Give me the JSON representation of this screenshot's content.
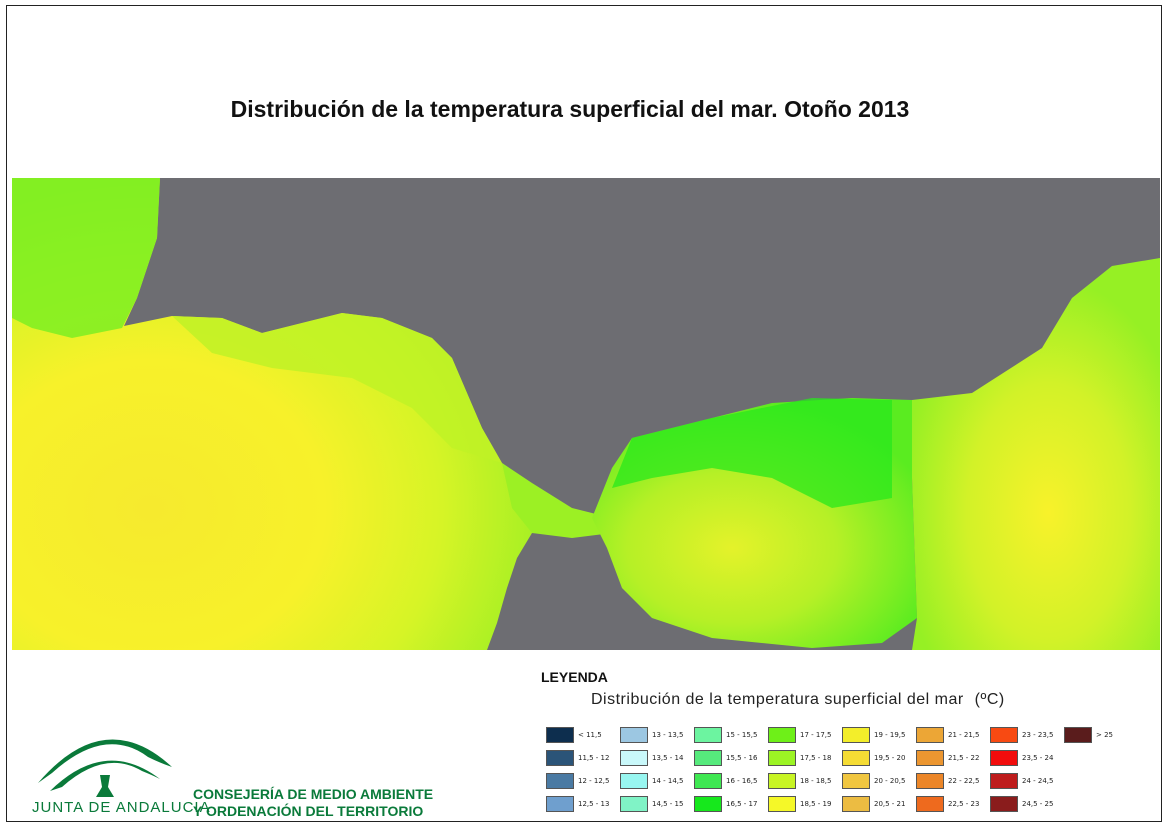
{
  "title": "Distribución de la temperatura superficial del mar. Otoño 2013",
  "legend": {
    "heading": "LEYENDA",
    "subtitle": "Distribución de la temperatura superficial del mar",
    "unit": "(ºC)",
    "items": [
      {
        "label": "< 11,5",
        "color": "#0d2e4e"
      },
      {
        "label": "11,5 - 12",
        "color": "#2b5478"
      },
      {
        "label": "12 - 12,5",
        "color": "#4a7aa3"
      },
      {
        "label": "12,5 - 13",
        "color": "#6f9fce"
      },
      {
        "label": "13 - 13,5",
        "color": "#9cc7e2"
      },
      {
        "label": "13,5 - 14",
        "color": "#c9f8fa"
      },
      {
        "label": "14 - 14,5",
        "color": "#98f6f0"
      },
      {
        "label": "14,5 - 15",
        "color": "#80f3c6"
      },
      {
        "label": "15 - 15,5",
        "color": "#6cf4a0"
      },
      {
        "label": "15,5 - 16",
        "color": "#56ea7c"
      },
      {
        "label": "16 - 16,5",
        "color": "#3fe852"
      },
      {
        "label": "16,5 - 17",
        "color": "#16e81c"
      },
      {
        "label": "17 - 17,5",
        "color": "#6ef018"
      },
      {
        "label": "17,5 - 18",
        "color": "#9cf424"
      },
      {
        "label": "18 - 18,5",
        "color": "#c8f524"
      },
      {
        "label": "18,5 - 19",
        "color": "#f5f828"
      },
      {
        "label": "19 - 19,5",
        "color": "#f3ee2a"
      },
      {
        "label": "19,5 - 20",
        "color": "#f5dc34"
      },
      {
        "label": "20 - 20,5",
        "color": "#f0c640"
      },
      {
        "label": "20,5 - 21",
        "color": "#ecbc42"
      },
      {
        "label": "21 - 21,5",
        "color": "#eca636"
      },
      {
        "label": "21,5 - 22",
        "color": "#ec9630"
      },
      {
        "label": "22 - 22,5",
        "color": "#ec8628"
      },
      {
        "label": "22,5 - 23",
        "color": "#ee6a1e"
      },
      {
        "label": "23 - 23,5",
        "color": "#f84a12"
      },
      {
        "label": "23,5 - 24",
        "color": "#f20c0c"
      },
      {
        "label": "24 - 24,5",
        "color": "#be1c1c"
      },
      {
        "label": "24,5 - 25",
        "color": "#8a1c1c"
      },
      {
        "label": "> 25",
        "color": "#5a1c1c"
      }
    ]
  },
  "institution": {
    "logo_text": "JUNTA DE ANDALUCIA",
    "line1": "CONSEJERÍA DE MEDIO AMBIENTE",
    "line2": "Y ORDENACIÓN DEL TERRITORIO"
  },
  "colors": {
    "land": "#6d6d72",
    "brand_green": "#0a7a3a"
  }
}
